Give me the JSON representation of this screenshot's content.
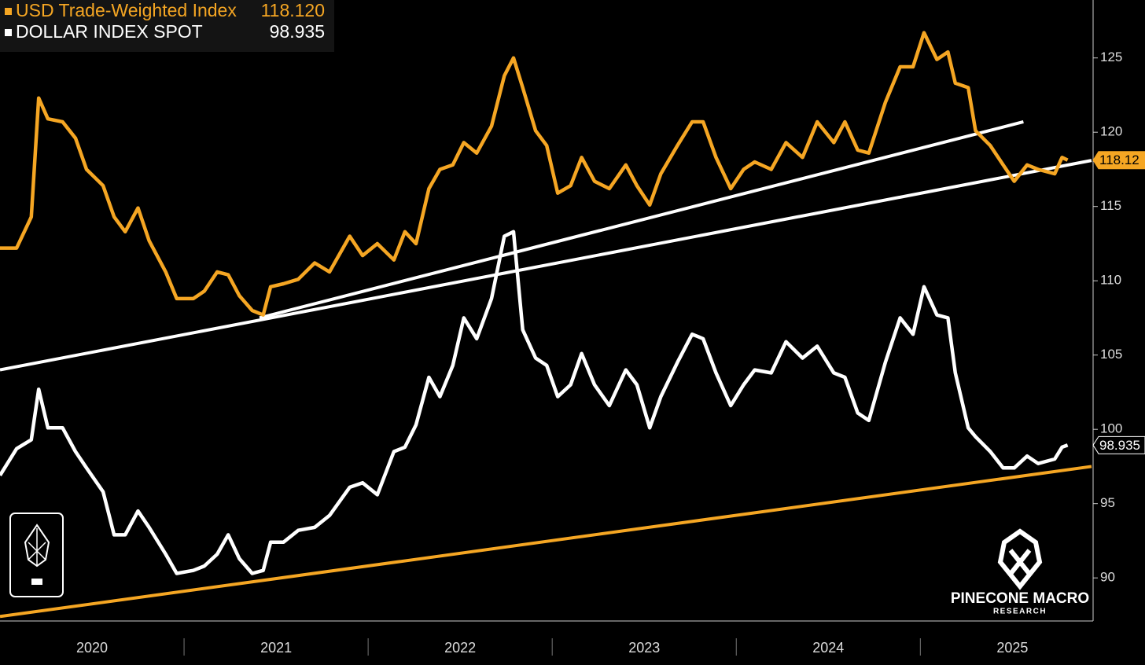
{
  "chart_data": {
    "type": "line",
    "x": [
      2020.0,
      2020.09,
      2020.17,
      2020.21,
      2020.26,
      2020.34,
      2020.41,
      2020.47,
      2020.56,
      2020.62,
      2020.68,
      2020.75,
      2020.81,
      2020.9,
      2020.96,
      2021.05,
      2021.11,
      2021.18,
      2021.24,
      2021.3,
      2021.37,
      2021.43,
      2021.47,
      2021.54,
      2021.62,
      2021.71,
      2021.79,
      2021.9,
      2021.97,
      2022.05,
      2022.14,
      2022.2,
      2022.26,
      2022.33,
      2022.39,
      2022.46,
      2022.52,
      2022.59,
      2022.67,
      2022.74,
      2022.79,
      2022.84,
      2022.91,
      2022.97,
      2023.03,
      2023.1,
      2023.16,
      2023.23,
      2023.31,
      2023.4,
      2023.46,
      2023.53,
      2023.59,
      2023.68,
      2023.76,
      2023.82,
      2023.89,
      2023.97,
      2024.04,
      2024.1,
      2024.19,
      2024.27,
      2024.36,
      2024.44,
      2024.53,
      2024.59,
      2024.66,
      2024.72,
      2024.81,
      2024.89,
      2024.96,
      2025.02,
      2025.09,
      2025.15,
      2025.19,
      2025.26,
      2025.3,
      2025.38,
      2025.45,
      2025.51,
      2025.58,
      2025.64,
      2025.73,
      2025.77,
      2025.8
    ],
    "series": [
      {
        "name": "USD Trade-Weighted Index",
        "legend_value": "118.120",
        "color": "#f5a623",
        "values": [
          112.2,
          112.2,
          114.3,
          122.3,
          120.9,
          120.7,
          119.6,
          117.5,
          116.4,
          114.3,
          113.3,
          114.9,
          112.7,
          110.6,
          108.8,
          108.8,
          109.3,
          110.6,
          110.4,
          109.0,
          108.0,
          107.7,
          109.6,
          109.8,
          110.1,
          111.2,
          110.6,
          113.0,
          111.7,
          112.5,
          111.4,
          113.3,
          112.5,
          116.2,
          117.5,
          117.8,
          119.3,
          118.6,
          120.4,
          123.8,
          125.0,
          123.0,
          120.1,
          119.1,
          115.9,
          116.4,
          118.3,
          116.7,
          116.2,
          117.8,
          116.4,
          115.1,
          117.2,
          119.1,
          120.7,
          120.7,
          118.3,
          116.2,
          117.5,
          118.0,
          117.5,
          119.3,
          118.3,
          120.7,
          119.3,
          120.7,
          118.8,
          118.6,
          122.0,
          124.4,
          124.4,
          126.7,
          124.9,
          125.4,
          123.3,
          123.0,
          120.1,
          119.1,
          117.8,
          116.7,
          117.8,
          117.5,
          117.2,
          118.3,
          118.12
        ],
        "value_labels": [
          null,
          null,
          null,
          null,
          null,
          null,
          null,
          null,
          null,
          null,
          null,
          null,
          null,
          null,
          null,
          null,
          null,
          null,
          null,
          null,
          null,
          null,
          null,
          null,
          null,
          null,
          null,
          null,
          null,
          null,
          null,
          null,
          null,
          null,
          null,
          null,
          null,
          null,
          null,
          null,
          null,
          null,
          null,
          null,
          null,
          null,
          null,
          null,
          null,
          null,
          null,
          null,
          null,
          null,
          null,
          null,
          null,
          null,
          null,
          null,
          null,
          null,
          null,
          null,
          null,
          null,
          null,
          null,
          null,
          null,
          null,
          null,
          null,
          null,
          null,
          null,
          null,
          null,
          null,
          null,
          null,
          null,
          null,
          null,
          "118.12"
        ]
      },
      {
        "name": "DOLLAR INDEX SPOT",
        "legend_value": "98.935",
        "color": "#ffffff",
        "values": [
          96.9,
          98.7,
          99.3,
          102.7,
          100.1,
          100.1,
          98.5,
          97.4,
          95.8,
          92.9,
          92.9,
          94.5,
          93.4,
          91.6,
          90.3,
          90.5,
          90.8,
          91.6,
          92.9,
          91.3,
          90.3,
          90.5,
          92.4,
          92.4,
          93.2,
          93.4,
          94.2,
          96.1,
          96.4,
          95.6,
          98.5,
          98.8,
          100.3,
          103.5,
          102.2,
          104.3,
          107.5,
          106.1,
          108.8,
          113.0,
          113.3,
          106.7,
          104.8,
          104.3,
          102.2,
          103.0,
          105.1,
          103.0,
          101.6,
          104.0,
          103.0,
          100.1,
          102.2,
          104.5,
          106.4,
          106.1,
          103.8,
          101.6,
          103.0,
          104.0,
          103.8,
          105.9,
          104.8,
          105.6,
          103.8,
          103.5,
          101.1,
          100.6,
          104.5,
          107.5,
          106.4,
          109.6,
          107.7,
          107.5,
          103.8,
          100.1,
          99.5,
          98.5,
          97.4,
          97.4,
          98.2,
          97.7,
          98.0,
          98.8,
          98.935
        ],
        "value_labels": [
          null,
          null,
          null,
          null,
          null,
          null,
          null,
          null,
          null,
          null,
          null,
          null,
          null,
          null,
          null,
          null,
          null,
          null,
          null,
          null,
          null,
          null,
          null,
          null,
          null,
          null,
          null,
          null,
          null,
          null,
          null,
          null,
          null,
          null,
          null,
          null,
          null,
          null,
          null,
          null,
          null,
          null,
          null,
          null,
          null,
          null,
          null,
          null,
          null,
          null,
          null,
          null,
          null,
          null,
          null,
          null,
          null,
          null,
          null,
          null,
          null,
          null,
          null,
          null,
          null,
          null,
          null,
          null,
          null,
          null,
          null,
          null,
          null,
          null,
          null,
          null,
          null,
          null,
          null,
          null,
          null,
          null,
          null,
          null,
          "98.935"
        ]
      }
    ],
    "trendlines": [
      {
        "color": "#ffffff",
        "x": [
          2020.0,
          2025.93
        ],
        "y": [
          104.0,
          118.1
        ]
      },
      {
        "color": "#ffffff",
        "x": [
          2021.41,
          2025.56
        ],
        "y": [
          107.5,
          120.7
        ]
      },
      {
        "color": "#f5a623",
        "x": [
          2020.0,
          2025.93
        ],
        "y": [
          87.4,
          97.5
        ]
      }
    ],
    "xlim": [
      2020,
      2025.93
    ],
    "xticks": [
      2020,
      2021,
      2022,
      2023,
      2024,
      2025
    ],
    "ylim": [
      87.1,
      128.9
    ],
    "yticks": [
      90,
      95,
      100,
      105,
      110,
      115,
      120,
      125
    ],
    "brand": {
      "name": "PINECONE MACRO",
      "sub": "RESEARCH"
    }
  }
}
